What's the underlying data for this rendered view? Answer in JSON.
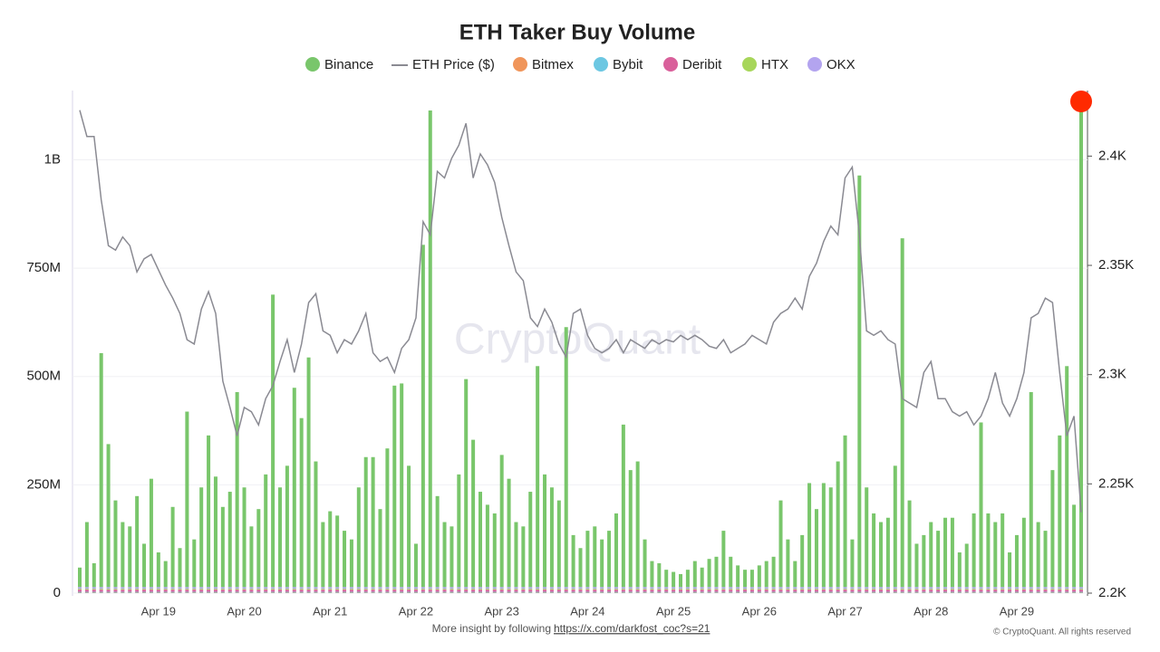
{
  "chart_data": {
    "type": "bar",
    "title": "ETH Taker Buy Volume",
    "watermark": "CryptoQuant",
    "footer": "More insight by following",
    "footer_link": "https://x.com/darkfost_coc?s=21",
    "copyright": "© CryptoQuant. All rights reserved",
    "stacked": true,
    "grid": true,
    "legend": "top",
    "categories": [
      null,
      null,
      null,
      null,
      null,
      null,
      null,
      null,
      null,
      null,
      null,
      "Apr 19",
      null,
      null,
      null,
      null,
      null,
      null,
      null,
      null,
      null,
      null,
      null,
      "Apr 20",
      null,
      null,
      null,
      null,
      null,
      null,
      null,
      null,
      null,
      null,
      null,
      "Apr 21",
      null,
      null,
      null,
      null,
      null,
      null,
      null,
      null,
      null,
      null,
      null,
      "Apr 22",
      null,
      null,
      null,
      null,
      null,
      null,
      null,
      null,
      null,
      null,
      null,
      "Apr 23",
      null,
      null,
      null,
      null,
      null,
      null,
      null,
      null,
      null,
      null,
      null,
      "Apr 24",
      null,
      null,
      null,
      null,
      null,
      null,
      null,
      null,
      null,
      null,
      null,
      "Apr 25",
      null,
      null,
      null,
      null,
      null,
      null,
      null,
      null,
      null,
      null,
      null,
      "Apr 26",
      null,
      null,
      null,
      null,
      null,
      null,
      null,
      null,
      null,
      null,
      null,
      "Apr 27",
      null,
      null,
      null,
      null,
      null,
      null,
      null,
      null,
      null,
      null,
      null,
      "Apr 28",
      null,
      null,
      null,
      null,
      null,
      null,
      null,
      null,
      null,
      null,
      null,
      "Apr 29",
      null,
      null,
      null,
      null,
      null,
      null,
      null,
      null,
      null
    ],
    "ylim": [
      0,
      1160
    ],
    "yticks": [
      0,
      {
        "value": 250,
        "label": "250M"
      },
      {
        "value": 500,
        "label": "500M"
      },
      {
        "value": 750,
        "label": "750M"
      },
      {
        "value": 1000,
        "label": "1B"
      }
    ],
    "y2lim": [
      2200,
      2430
    ],
    "y2ticks": [
      {
        "value": 2200,
        "label": "2.2K"
      },
      {
        "value": 2250,
        "label": "2.25K"
      },
      {
        "value": 2300,
        "label": "2.3K"
      },
      {
        "value": 2350,
        "label": "2.35K"
      },
      {
        "value": 2400,
        "label": "2.4K"
      }
    ],
    "series": [
      {
        "name": "Binance",
        "color": "#79c66b",
        "values": [
          45,
          150,
          55,
          540,
          330,
          200,
          150,
          140,
          210,
          100,
          250,
          80,
          60,
          185,
          90,
          405,
          110,
          230,
          350,
          255,
          185,
          220,
          450,
          230,
          140,
          180,
          260,
          675,
          230,
          280,
          460,
          390,
          530,
          290,
          150,
          175,
          165,
          130,
          110,
          230,
          300,
          300,
          180,
          320,
          465,
          470,
          280,
          100,
          790,
          1100,
          210,
          150,
          140,
          260,
          480,
          340,
          220,
          190,
          170,
          305,
          250,
          150,
          140,
          220,
          510,
          260,
          230,
          200,
          600,
          120,
          90,
          130,
          140,
          110,
          130,
          170,
          375,
          270,
          290,
          110,
          60,
          55,
          40,
          35,
          30,
          40,
          60,
          45,
          65,
          70,
          130,
          70,
          50,
          40,
          40,
          50,
          60,
          70,
          200,
          110,
          60,
          120,
          240,
          180,
          240,
          230,
          290,
          350,
          110,
          950,
          230,
          170,
          150,
          160,
          280,
          805,
          200,
          100,
          120,
          150,
          130,
          160,
          160,
          80,
          100,
          170,
          380,
          170,
          150,
          170,
          80,
          120,
          160,
          450,
          150,
          130,
          270,
          350,
          510,
          190,
          1140
        ]
      },
      {
        "name": "ETH Price ($)",
        "type": "line",
        "axis": "y2",
        "color": "#8a8a92",
        "values": [
          2421,
          2409,
          2409,
          2380,
          2359,
          2357,
          2363,
          2359,
          2347,
          2353,
          2355,
          2348,
          2341,
          2335,
          2328,
          2316,
          2314,
          2330,
          2338,
          2328,
          2297,
          2285,
          2272,
          2285,
          2283,
          2277,
          2289,
          2295,
          2306,
          2316,
          2301,
          2314,
          2333,
          2337,
          2320,
          2318,
          2310,
          2316,
          2314,
          2320,
          2328,
          2310,
          2306,
          2308,
          2301,
          2312,
          2316,
          2326,
          2370,
          2364,
          2393,
          2390,
          2399,
          2405,
          2415,
          2390,
          2401,
          2396,
          2388,
          2372,
          2359,
          2347,
          2343,
          2326,
          2322,
          2330,
          2324,
          2314,
          2308,
          2328,
          2330,
          2318,
          2312,
          2310,
          2312,
          2316,
          2310,
          2316,
          2314,
          2312,
          2316,
          2314,
          2316,
          2315,
          2318,
          2316,
          2318,
          2316,
          2313,
          2312,
          2316,
          2310,
          2312,
          2314,
          2318,
          2316,
          2314,
          2324,
          2328,
          2330,
          2335,
          2330,
          2345,
          2351,
          2361,
          2368,
          2364,
          2390,
          2395,
          2364,
          2320,
          2318,
          2320,
          2316,
          2314,
          2289,
          2287,
          2285,
          2301,
          2306,
          2289,
          2289,
          2283,
          2281,
          2283,
          2277,
          2281,
          2289,
          2301,
          2287,
          2281,
          2289,
          2301,
          2326,
          2328,
          2335,
          2333,
          2301,
          2272,
          2281,
          2237
        ]
      },
      {
        "name": "Bitmex",
        "color": "#f0955a",
        "values": [
          1,
          1,
          1,
          1,
          1,
          1,
          1,
          1,
          1,
          1,
          1,
          1,
          1,
          1,
          1,
          1,
          1,
          1,
          1,
          1,
          1,
          1,
          1,
          1,
          1,
          1,
          1,
          1,
          1,
          1,
          1,
          1,
          1,
          1,
          1,
          1,
          1,
          1,
          1,
          1,
          1,
          1,
          1,
          1,
          1,
          1,
          1,
          1,
          1,
          1,
          1,
          1,
          1,
          1,
          1,
          1,
          1,
          1,
          1,
          1,
          1,
          1,
          1,
          1,
          1,
          1,
          1,
          1,
          1,
          1,
          1,
          1,
          1,
          1,
          1,
          1,
          1,
          1,
          1,
          1,
          1,
          1,
          1,
          1,
          1,
          1,
          1,
          1,
          1,
          1,
          1,
          1,
          1,
          1,
          1,
          1,
          1,
          1,
          1,
          1,
          1,
          1,
          1,
          1,
          1,
          1,
          1,
          1,
          1,
          1,
          1,
          1,
          1,
          1,
          1,
          1,
          1,
          1,
          1,
          1,
          1,
          1,
          1,
          1,
          1,
          1,
          1,
          1,
          1,
          1,
          1,
          1,
          1,
          1,
          1,
          1,
          1,
          1,
          1,
          1,
          1
        ]
      },
      {
        "name": "Bybit",
        "color": "#6cc7e2",
        "values": [
          2,
          2,
          2,
          2,
          2,
          2,
          2,
          2,
          2,
          2,
          2,
          2,
          2,
          2,
          2,
          2,
          2,
          2,
          2,
          2,
          2,
          2,
          2,
          2,
          2,
          2,
          2,
          2,
          2,
          2,
          2,
          2,
          2,
          2,
          2,
          2,
          2,
          2,
          2,
          2,
          2,
          2,
          2,
          2,
          2,
          2,
          2,
          2,
          2,
          2,
          2,
          2,
          2,
          2,
          2,
          2,
          2,
          2,
          2,
          2,
          2,
          2,
          2,
          2,
          2,
          2,
          2,
          2,
          2,
          2,
          2,
          2,
          2,
          2,
          2,
          2,
          2,
          2,
          2,
          2,
          2,
          2,
          2,
          2,
          2,
          2,
          2,
          2,
          2,
          2,
          2,
          2,
          2,
          2,
          2,
          2,
          2,
          2,
          2,
          2,
          2,
          2,
          2,
          2,
          2,
          2,
          2,
          2,
          2,
          2,
          2,
          2,
          2,
          2,
          2,
          2,
          2,
          2,
          2,
          2,
          2,
          2,
          2,
          2,
          2,
          2,
          2,
          2,
          2,
          2,
          2,
          2,
          2,
          2,
          2,
          2,
          2,
          2,
          2,
          2,
          2
        ]
      },
      {
        "name": "Deribit",
        "color": "#d9609b",
        "values": [
          5,
          5,
          5,
          5,
          5,
          5,
          5,
          5,
          5,
          5,
          5,
          5,
          5,
          5,
          5,
          5,
          5,
          5,
          5,
          5,
          5,
          5,
          5,
          5,
          5,
          5,
          5,
          5,
          5,
          5,
          5,
          5,
          5,
          5,
          5,
          5,
          5,
          5,
          5,
          5,
          5,
          5,
          5,
          5,
          5,
          5,
          5,
          5,
          5,
          5,
          5,
          5,
          5,
          5,
          5,
          5,
          5,
          5,
          5,
          5,
          5,
          5,
          5,
          5,
          5,
          5,
          5,
          5,
          5,
          5,
          5,
          5,
          5,
          5,
          5,
          5,
          5,
          5,
          5,
          5,
          5,
          5,
          5,
          5,
          5,
          5,
          5,
          5,
          5,
          5,
          5,
          5,
          5,
          5,
          5,
          5,
          5,
          5,
          5,
          5,
          5,
          5,
          5,
          5,
          5,
          5,
          5,
          5,
          5,
          5,
          5,
          5,
          5,
          5,
          5,
          5,
          5,
          5,
          5,
          5,
          5,
          5,
          5,
          5,
          5,
          5,
          5,
          5,
          5,
          5,
          5,
          5,
          5,
          5,
          5,
          5,
          5,
          5,
          5,
          5,
          5
        ]
      },
      {
        "name": "HTX",
        "color": "#a7d65a",
        "values": [
          2,
          2,
          2,
          2,
          2,
          2,
          2,
          2,
          2,
          2,
          2,
          2,
          2,
          2,
          2,
          2,
          2,
          2,
          2,
          2,
          2,
          2,
          2,
          2,
          2,
          2,
          2,
          2,
          2,
          2,
          2,
          2,
          2,
          2,
          2,
          2,
          2,
          2,
          2,
          2,
          2,
          2,
          2,
          2,
          2,
          2,
          2,
          2,
          2,
          2,
          2,
          2,
          2,
          2,
          2,
          2,
          2,
          2,
          2,
          2,
          2,
          2,
          2,
          2,
          2,
          2,
          2,
          2,
          2,
          2,
          2,
          2,
          2,
          2,
          2,
          2,
          2,
          2,
          2,
          2,
          2,
          2,
          2,
          2,
          2,
          2,
          2,
          2,
          2,
          2,
          2,
          2,
          2,
          2,
          2,
          2,
          2,
          2,
          2,
          2,
          2,
          2,
          2,
          2,
          2,
          2,
          2,
          2,
          2,
          2,
          2,
          2,
          2,
          2,
          2,
          2,
          2,
          2,
          2,
          2,
          2,
          2,
          2,
          2,
          2,
          2,
          2,
          2,
          2,
          2,
          2,
          2,
          2,
          2,
          2,
          2,
          2,
          2,
          2,
          2,
          2
        ]
      },
      {
        "name": "OKX",
        "color": "#b3a4ef",
        "values": [
          4,
          4,
          4,
          4,
          4,
          4,
          4,
          4,
          4,
          4,
          4,
          4,
          4,
          4,
          4,
          4,
          4,
          4,
          4,
          4,
          4,
          4,
          4,
          4,
          4,
          4,
          4,
          4,
          4,
          4,
          4,
          4,
          4,
          4,
          4,
          4,
          4,
          4,
          4,
          4,
          4,
          4,
          4,
          4,
          4,
          4,
          4,
          4,
          4,
          4,
          4,
          4,
          4,
          4,
          4,
          4,
          4,
          4,
          4,
          4,
          4,
          4,
          4,
          4,
          4,
          4,
          4,
          4,
          4,
          4,
          4,
          4,
          4,
          4,
          4,
          4,
          4,
          4,
          4,
          4,
          4,
          4,
          4,
          4,
          4,
          4,
          4,
          4,
          4,
          4,
          4,
          4,
          4,
          4,
          4,
          4,
          4,
          4,
          4,
          4,
          4,
          4,
          4,
          4,
          4,
          4,
          4,
          4,
          4,
          4,
          4,
          4,
          4,
          4,
          4,
          4,
          4,
          4,
          4,
          4,
          4,
          4,
          4,
          4,
          4,
          4,
          4,
          4,
          4,
          4,
          4,
          4,
          4,
          4,
          4,
          4,
          4,
          4,
          4,
          4,
          4
        ]
      }
    ]
  }
}
